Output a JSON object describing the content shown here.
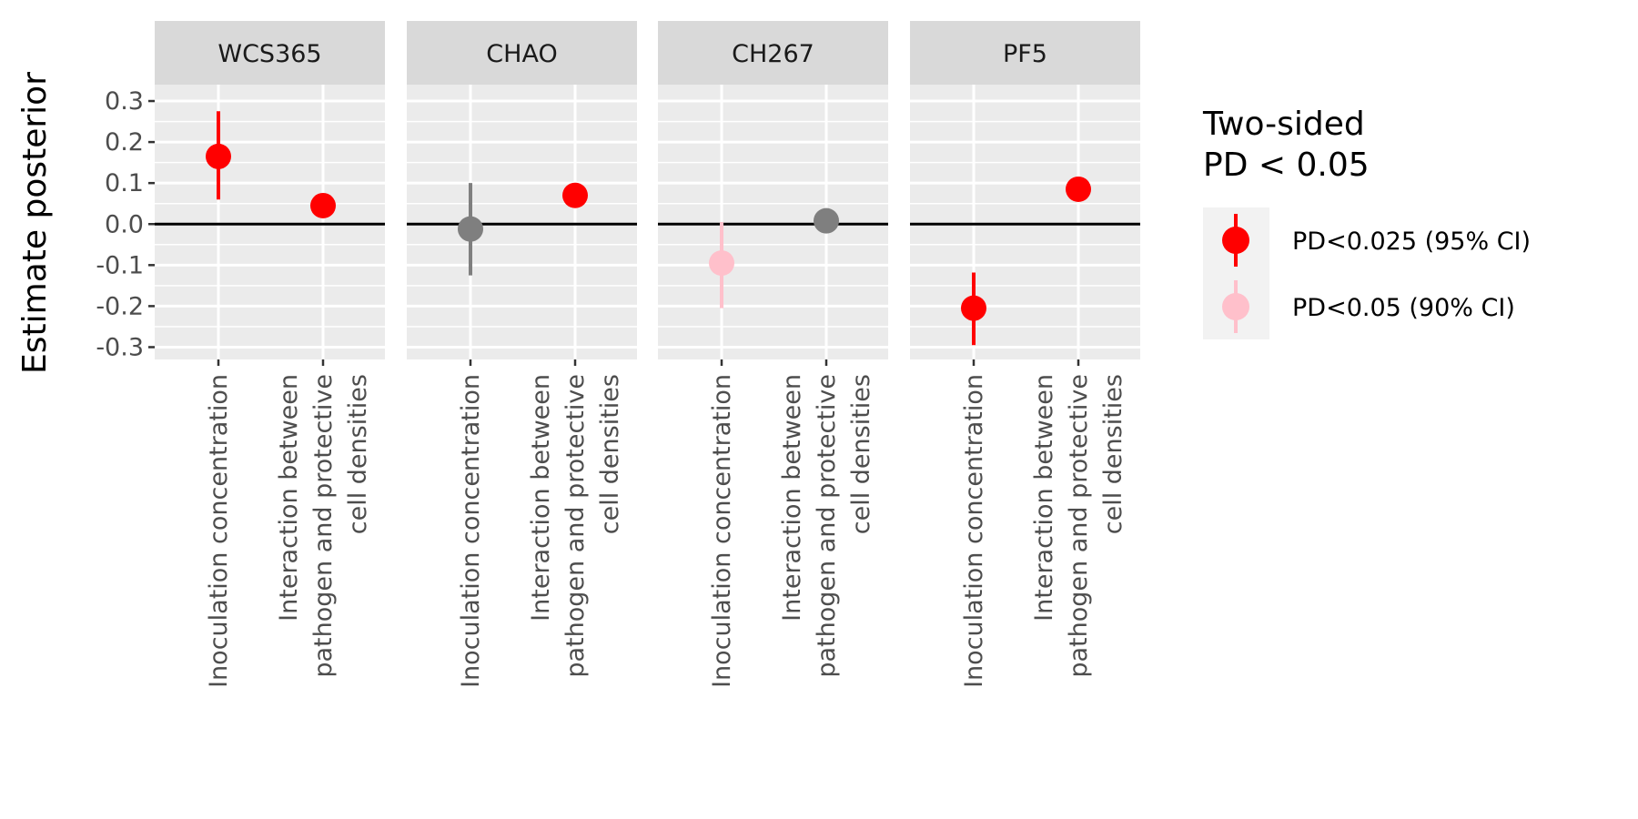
{
  "chart_data": {
    "type": "scatter",
    "ylabel": "Estimate posterior",
    "ylim": [
      -0.33,
      0.34
    ],
    "yticks": [
      -0.3,
      -0.2,
      -0.1,
      0.0,
      0.1,
      0.2,
      0.3
    ],
    "ytick_labels": [
      "-0.3",
      "-0.2",
      "-0.1",
      "0.0",
      "0.1",
      "0.2",
      "0.3"
    ],
    "reference_line": 0,
    "categories": [
      [
        "Inoculation concentration"
      ],
      [
        "Interaction between",
        "pathogen and protective",
        "cell densities"
      ]
    ],
    "panels": [
      {
        "strain": "WCS365",
        "points": [
          {
            "category": 0,
            "estimate": 0.165,
            "lower": 0.06,
            "upper": 0.275,
            "significance": "PD<0.025 (95% CI)"
          },
          {
            "category": 1,
            "estimate": 0.045,
            "lower": null,
            "upper": null,
            "significance": "PD<0.025 (95% CI)"
          }
        ]
      },
      {
        "strain": "CHAO",
        "points": [
          {
            "category": 0,
            "estimate": -0.012,
            "lower": -0.125,
            "upper": 0.1,
            "significance": "none"
          },
          {
            "category": 1,
            "estimate": 0.07,
            "lower": null,
            "upper": null,
            "significance": "PD<0.025 (95% CI)"
          }
        ]
      },
      {
        "strain": "CH267",
        "points": [
          {
            "category": 0,
            "estimate": -0.095,
            "lower": -0.205,
            "upper": 0.005,
            "significance": "PD<0.05 (90% CI)"
          },
          {
            "category": 1,
            "estimate": 0.008,
            "lower": null,
            "upper": null,
            "significance": "none"
          }
        ]
      },
      {
        "strain": "PF5",
        "points": [
          {
            "category": 0,
            "estimate": -0.205,
            "lower": -0.295,
            "upper": -0.118,
            "significance": "PD<0.025 (95% CI)"
          },
          {
            "category": 1,
            "estimate": 0.085,
            "lower": null,
            "upper": null,
            "significance": "PD<0.025 (95% CI)"
          }
        ]
      }
    ],
    "legend": {
      "title": [
        "Two-sided",
        "PD < 0.05"
      ],
      "placement": "right",
      "entries": [
        {
          "label": "PD<0.025 (95% CI)",
          "color": "#ff0000"
        },
        {
          "label": "PD<0.05 (90% CI)",
          "color": "#ffc0cb"
        }
      ]
    },
    "colors": {
      "PD<0.025 (95% CI)": "#ff0000",
      "PD<0.05 (90% CI)": "#ffc0cb",
      "none": "#7f7f7f",
      "panel_background": "#ebebeb",
      "strip_background": "#d9d9d9",
      "gridline": "#ffffff",
      "reference_line": "#000000"
    },
    "grid": true
  }
}
